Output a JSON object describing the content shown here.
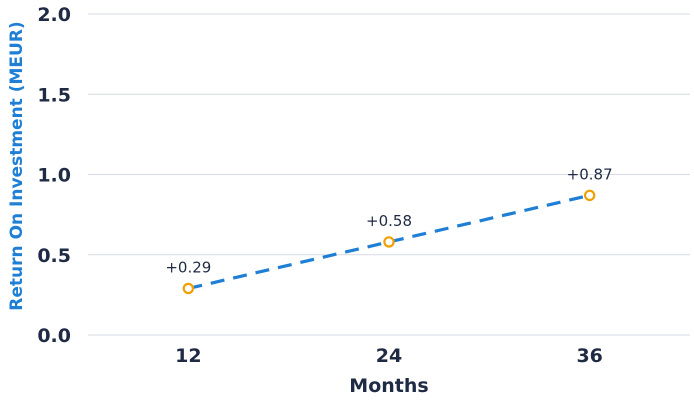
{
  "chart_data": {
    "type": "line",
    "x": [
      12,
      24,
      36
    ],
    "series": [
      {
        "values": [
          0.29,
          0.58,
          0.87
        ]
      }
    ],
    "data_labels": [
      "+0.29",
      "+0.58",
      "+0.87"
    ],
    "x_tick_labels": [
      "12",
      "24",
      "36"
    ],
    "y_ticks": [
      0.0,
      0.5,
      1.0,
      1.5,
      2.0
    ],
    "y_tick_labels": [
      "0.0",
      "0.5",
      "1.0",
      "1.5",
      "2.0"
    ],
    "xlabel": "Months",
    "ylabel": "Return On Investment (MEUR)",
    "ylim": [
      0,
      2.0
    ],
    "xlim": [
      6,
      42
    ],
    "grid": "horizontal",
    "line_color": "#1f7fd4",
    "marker_color": "#f0a000",
    "line_style": "dashed"
  }
}
